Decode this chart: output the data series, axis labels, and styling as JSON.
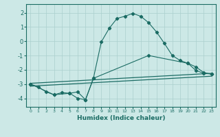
{
  "xlabel": "Humidex (Indice chaleur)",
  "bg_color": "#cce8e6",
  "grid_color": "#aacfcd",
  "line_color": "#1a6b63",
  "xlim": [
    -0.5,
    23.5
  ],
  "ylim": [
    -4.6,
    2.6
  ],
  "yticks": [
    -4,
    -3,
    -2,
    -1,
    0,
    1,
    2
  ],
  "xticks": [
    0,
    1,
    2,
    3,
    4,
    5,
    6,
    7,
    8,
    9,
    10,
    11,
    12,
    13,
    14,
    15,
    16,
    17,
    18,
    19,
    20,
    21,
    22,
    23
  ],
  "line1_x": [
    0,
    1,
    2,
    3,
    4,
    5,
    6,
    7,
    8,
    9,
    10,
    11,
    12,
    13,
    14,
    15,
    16,
    17,
    18,
    19,
    20,
    21,
    22,
    23
  ],
  "line1_y": [
    -3.0,
    -3.2,
    -3.55,
    -3.75,
    -3.6,
    -3.65,
    -4.0,
    -4.1,
    -2.6,
    -0.05,
    0.9,
    1.6,
    1.75,
    1.95,
    1.75,
    1.3,
    0.65,
    -0.15,
    -1.0,
    -1.35,
    -1.55,
    -2.05,
    -2.25,
    -2.3
  ],
  "line2_x": [
    0,
    3,
    5,
    6,
    7,
    8,
    15,
    20,
    21,
    22,
    23
  ],
  "line2_y": [
    -3.0,
    -3.75,
    -3.65,
    -3.55,
    -4.1,
    -2.6,
    -1.0,
    -1.55,
    -1.8,
    -2.2,
    -2.3
  ],
  "line3_x": [
    0,
    23
  ],
  "line3_y": [
    -2.95,
    -2.25
  ],
  "line4_x": [
    0,
    23
  ],
  "line4_y": [
    -3.15,
    -2.45
  ]
}
